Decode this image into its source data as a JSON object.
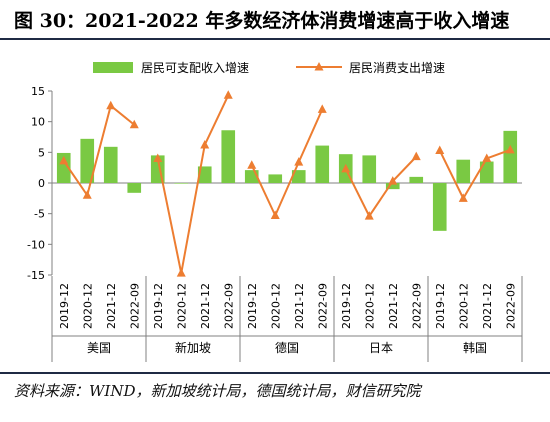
{
  "title": "图 30：2021-2022 年多数经济体消费增速高于收入增速",
  "source": "资料来源：WIND，新加坡统计局，德国统计局，财信研究院",
  "colors": {
    "income": "#7ac943",
    "consumption": "#ed7d31",
    "axis": "#808080"
  },
  "chart_data": {
    "type": "bar",
    "groups": [
      "美国",
      "新加坡",
      "德国",
      "日本",
      "韩国"
    ],
    "categories": [
      "2019-12",
      "2020-12",
      "2021-12",
      "2022-09"
    ],
    "ylim": [
      -15,
      15
    ],
    "yticks": [
      -15,
      -10,
      -5,
      0,
      5,
      10,
      15
    ],
    "legend_position": "top",
    "series": [
      {
        "name": "居民可支配收入增速",
        "type": "bar",
        "values": [
          [
            4.9,
            7.2,
            5.9,
            -1.6
          ],
          [
            4.5,
            -0.1,
            2.7,
            8.6
          ],
          [
            2.1,
            1.4,
            2.1,
            6.1
          ],
          [
            4.7,
            4.5,
            -1.0,
            1.0
          ],
          [
            -7.8,
            3.8,
            3.5,
            8.5
          ]
        ]
      },
      {
        "name": "居民消费支出增速",
        "type": "line",
        "values": [
          [
            3.6,
            -2.0,
            12.6,
            9.5
          ],
          [
            4.0,
            -14.7,
            6.2,
            14.3
          ],
          [
            2.9,
            -5.3,
            3.4,
            12.0
          ],
          [
            2.3,
            -5.4,
            0.3,
            4.3
          ],
          [
            5.3,
            -2.5,
            4.0,
            5.4
          ]
        ]
      }
    ]
  }
}
